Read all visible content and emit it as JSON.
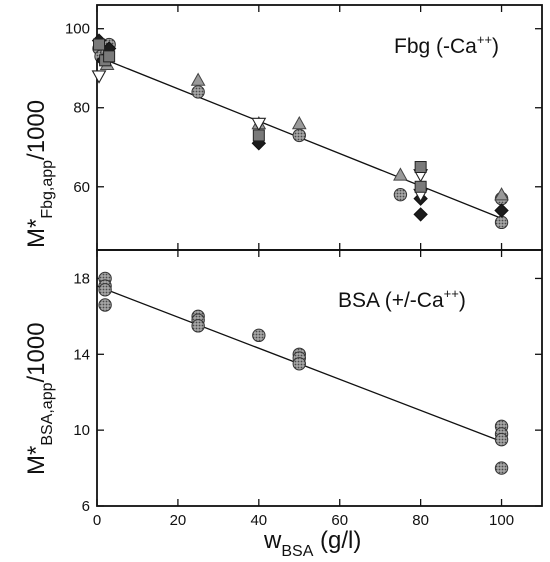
{
  "chart_data": [
    {
      "type": "scatter",
      "panel_label": {
        "main": "Fbg (-Ca",
        "sup": "++",
        "close": ")"
      },
      "ylabel": {
        "main": "M*",
        "sub": "Fbg,app",
        "tail": "/1000"
      },
      "xlim": [
        0,
        110
      ],
      "ylim": [
        44,
        106
      ],
      "yticks": [
        60,
        80,
        100
      ],
      "ytick_labels": [
        "60",
        "80",
        "100"
      ],
      "xticks": [
        0,
        20,
        40,
        60,
        80,
        100
      ],
      "fit_line": {
        "x": [
          0,
          100
        ],
        "y": [
          93,
          52
        ]
      },
      "colors": {
        "light": "#9a9a9a",
        "mid": "#7a7a7a",
        "dark": "#1c1c1c",
        "open": "#ffffff"
      },
      "series": [
        {
          "marker": "circle",
          "fill": "mid",
          "x": [
            0.5,
            1,
            2.5,
            3,
            25,
            50,
            75,
            100,
            100
          ],
          "y": [
            95,
            93,
            94,
            96,
            84,
            73,
            58,
            57,
            51
          ]
        },
        {
          "marker": "diamond",
          "fill": "dark",
          "x": [
            0.5,
            1.5,
            3,
            40,
            80,
            80,
            100
          ],
          "y": [
            97,
            92,
            95,
            71,
            53,
            57,
            54
          ]
        },
        {
          "marker": "triangle-up",
          "fill": "light",
          "x": [
            2.5,
            25,
            40,
            50,
            75,
            100
          ],
          "y": [
            91,
            87,
            76,
            76,
            63,
            58
          ]
        },
        {
          "marker": "triangle-down",
          "fill": "open",
          "x": [
            0.5,
            40,
            80,
            80
          ],
          "y": [
            88,
            76,
            63,
            58
          ]
        },
        {
          "marker": "square",
          "fill": "mid",
          "x": [
            0.5,
            2,
            3,
            40,
            80,
            80
          ],
          "y": [
            96,
            92,
            93,
            73,
            65,
            60
          ]
        }
      ]
    },
    {
      "type": "scatter",
      "panel_label": {
        "main": "BSA (+/-Ca",
        "sup": "++",
        "close": ")"
      },
      "ylabel": {
        "main": "M*",
        "sub": "BSA,app",
        "tail": "/1000"
      },
      "xlim": [
        0,
        110
      ],
      "ylim": [
        6,
        19.5
      ],
      "yticks": [
        6,
        10,
        14,
        18
      ],
      "ytick_labels": [
        "6",
        "10",
        "14",
        "18"
      ],
      "xticks": [
        0,
        20,
        40,
        60,
        80,
        100
      ],
      "xtick_labels": [
        "0",
        "20",
        "40",
        "60",
        "80",
        "100"
      ],
      "xlabel": {
        "main": "w",
        "sub": "BSA",
        "tail": " (g/l)"
      },
      "fit_line": {
        "x": [
          0,
          100
        ],
        "y": [
          17.6,
          9.4
        ]
      },
      "colors": {
        "mid": "#7a7a7a"
      },
      "series": [
        {
          "marker": "circle",
          "fill": "mid",
          "x": [
            2,
            2,
            2,
            2,
            25,
            25,
            25,
            40,
            50,
            50,
            50,
            100,
            100,
            100,
            100
          ],
          "y": [
            18,
            17.6,
            17.4,
            16.6,
            16,
            15.8,
            15.5,
            15,
            14,
            13.8,
            13.5,
            10.2,
            9.8,
            9.5,
            8
          ]
        }
      ]
    }
  ]
}
